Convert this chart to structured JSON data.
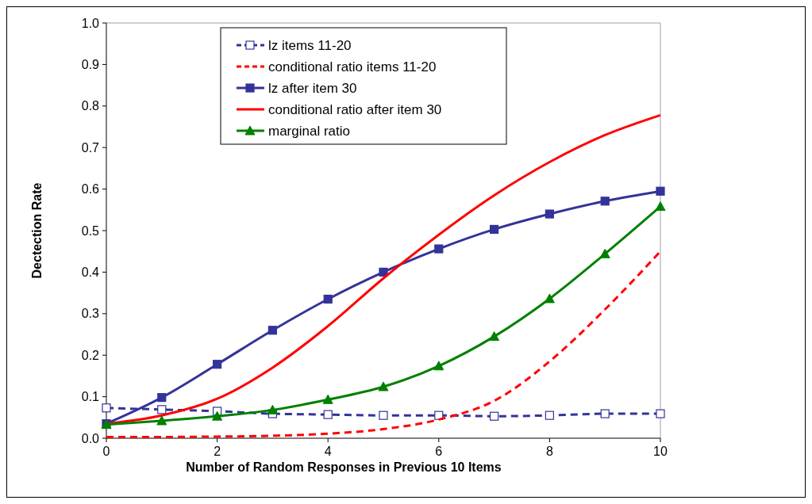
{
  "chart_data": {
    "type": "line",
    "xlabel": "Number of Random Responses in Previous 10 Items",
    "ylabel": "Dectection Rate",
    "x": [
      0,
      1,
      2,
      3,
      4,
      5,
      6,
      7,
      8,
      9,
      10
    ],
    "xlim": [
      0,
      10
    ],
    "xticks": [
      0,
      2,
      4,
      6,
      8,
      10
    ],
    "ylim": [
      0,
      1
    ],
    "yticks": [
      {
        "value": 0,
        "label": "0.0"
      },
      0.1,
      0.2,
      0.3,
      0.4,
      0.5,
      0.6,
      0.7,
      0.8,
      0.9,
      {
        "value": 1,
        "label": "1.0"
      }
    ],
    "grid": false,
    "legend": "top",
    "series": [
      {
        "name": "lz items 11-20",
        "color": "#333399",
        "marker": "square",
        "line_style": "dashed",
        "values": [
          0.073,
          0.069,
          0.065,
          0.059,
          0.057,
          0.055,
          0.055,
          0.053,
          0.055,
          0.059,
          0.059
        ]
      },
      {
        "name": "conditional ratio items 11-20",
        "color": "#ff0000",
        "marker": "none",
        "line_style": "dashed",
        "values": [
          0.003,
          0.003,
          0.004,
          0.006,
          0.011,
          0.022,
          0.045,
          0.09,
          0.185,
          0.31,
          0.45
        ]
      },
      {
        "name": "lz after item 30",
        "color": "#333399",
        "marker": "square",
        "line_style": "solid",
        "values": [
          0.035,
          0.098,
          0.178,
          0.26,
          0.335,
          0.4,
          0.456,
          0.503,
          0.54,
          0.571,
          0.595
        ]
      },
      {
        "name": "conditional ratio after item 30",
        "color": "#ff0000",
        "marker": "none",
        "line_style": "solid",
        "values": [
          0.035,
          0.055,
          0.095,
          0.17,
          0.27,
          0.385,
          0.49,
          0.585,
          0.665,
          0.73,
          0.778
        ]
      },
      {
        "name": "marginal ratio",
        "color": "#008000",
        "marker": "triangle",
        "line_style": "solid",
        "values": [
          0.033,
          0.042,
          0.053,
          0.068,
          0.093,
          0.124,
          0.174,
          0.245,
          0.336,
          0.444,
          0.558
        ]
      }
    ]
  }
}
